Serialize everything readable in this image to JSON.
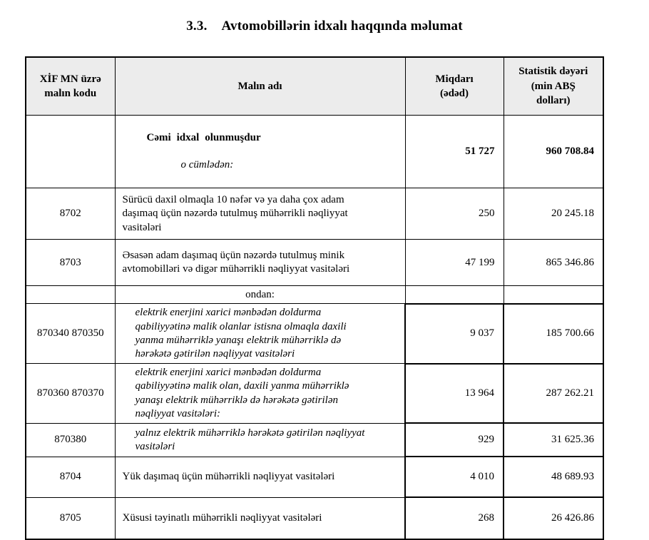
{
  "page": {
    "title_number": "3.3.",
    "title_text": "Avtomobillərin idxalı haqqında məlumat"
  },
  "table": {
    "colors": {
      "header_bg": "#ececec",
      "border": "#000000"
    },
    "columns": {
      "code": "XİF MN üzrə\nmalın kodu",
      "name": "Malın adı",
      "qty": "Miqdarı\n(ədəd)",
      "value": "Statistik dəyəri\n(min ABŞ\ndolları)"
    },
    "rows": [
      {
        "code": "",
        "name": "Cəmi idxal olunmuşdur",
        "subname": "o cümlədən:",
        "qty": "51 727",
        "value": "960 708.84"
      },
      {
        "code": "8702",
        "name": "Sürücü daxil olmaqla 10 nəfər və ya daha çox adam\ndaşımaq üçün nəzərdə tutulmuş mühərrikli nəqliyyat\nvasitələri",
        "qty": "250",
        "value": "20 245.18"
      },
      {
        "code": "8703",
        "name": "Əsasən adam daşımaq üçün nəzərdə tutulmuş minik\navtomobilləri və digər mühərrikli nəqliyyat vasitələri",
        "qty": "47 199",
        "value": "865 346.86"
      },
      {
        "code": "",
        "name": "ondan:",
        "qty": "",
        "value": ""
      },
      {
        "code": "870340 870350",
        "name": "elektrik enerjini xarici mənbədən doldurma\nqabiliyyətinə malik olanlar istisna olmaqla daxili\nyanma mühərriklə yanaşı elektrik mühərriklə də\nhərəkətə gətirilən nəqliyyat vasitələri",
        "qty": "9 037",
        "value": "185 700.66"
      },
      {
        "code": "870360 870370",
        "name": "elektrik enerjini xarici mənbədən doldurma\nqabiliyyətinə malik olan, daxili yanma mühərriklə\nyanaşı elektrik mühərriklə də hərəkətə gətirilən\nnəqliyyat vasitələri:",
        "qty": "13 964",
        "value": "287 262.21"
      },
      {
        "code": "870380",
        "name": "yalnız elektrik mühərriklə hərəkətə gətirilən nəqliyyat\nvasitələri",
        "qty": "929",
        "value": "31 625.36"
      },
      {
        "code": "8704",
        "name": "Yük daşımaq üçün mühərrikli nəqliyyat vasitələri",
        "qty": "4 010",
        "value": "48 689.93"
      },
      {
        "code": "8705",
        "name": "Xüsusi təyinatlı mühərrikli nəqliyyat vasitələri",
        "qty": "268",
        "value": "26 426.86"
      }
    ]
  }
}
